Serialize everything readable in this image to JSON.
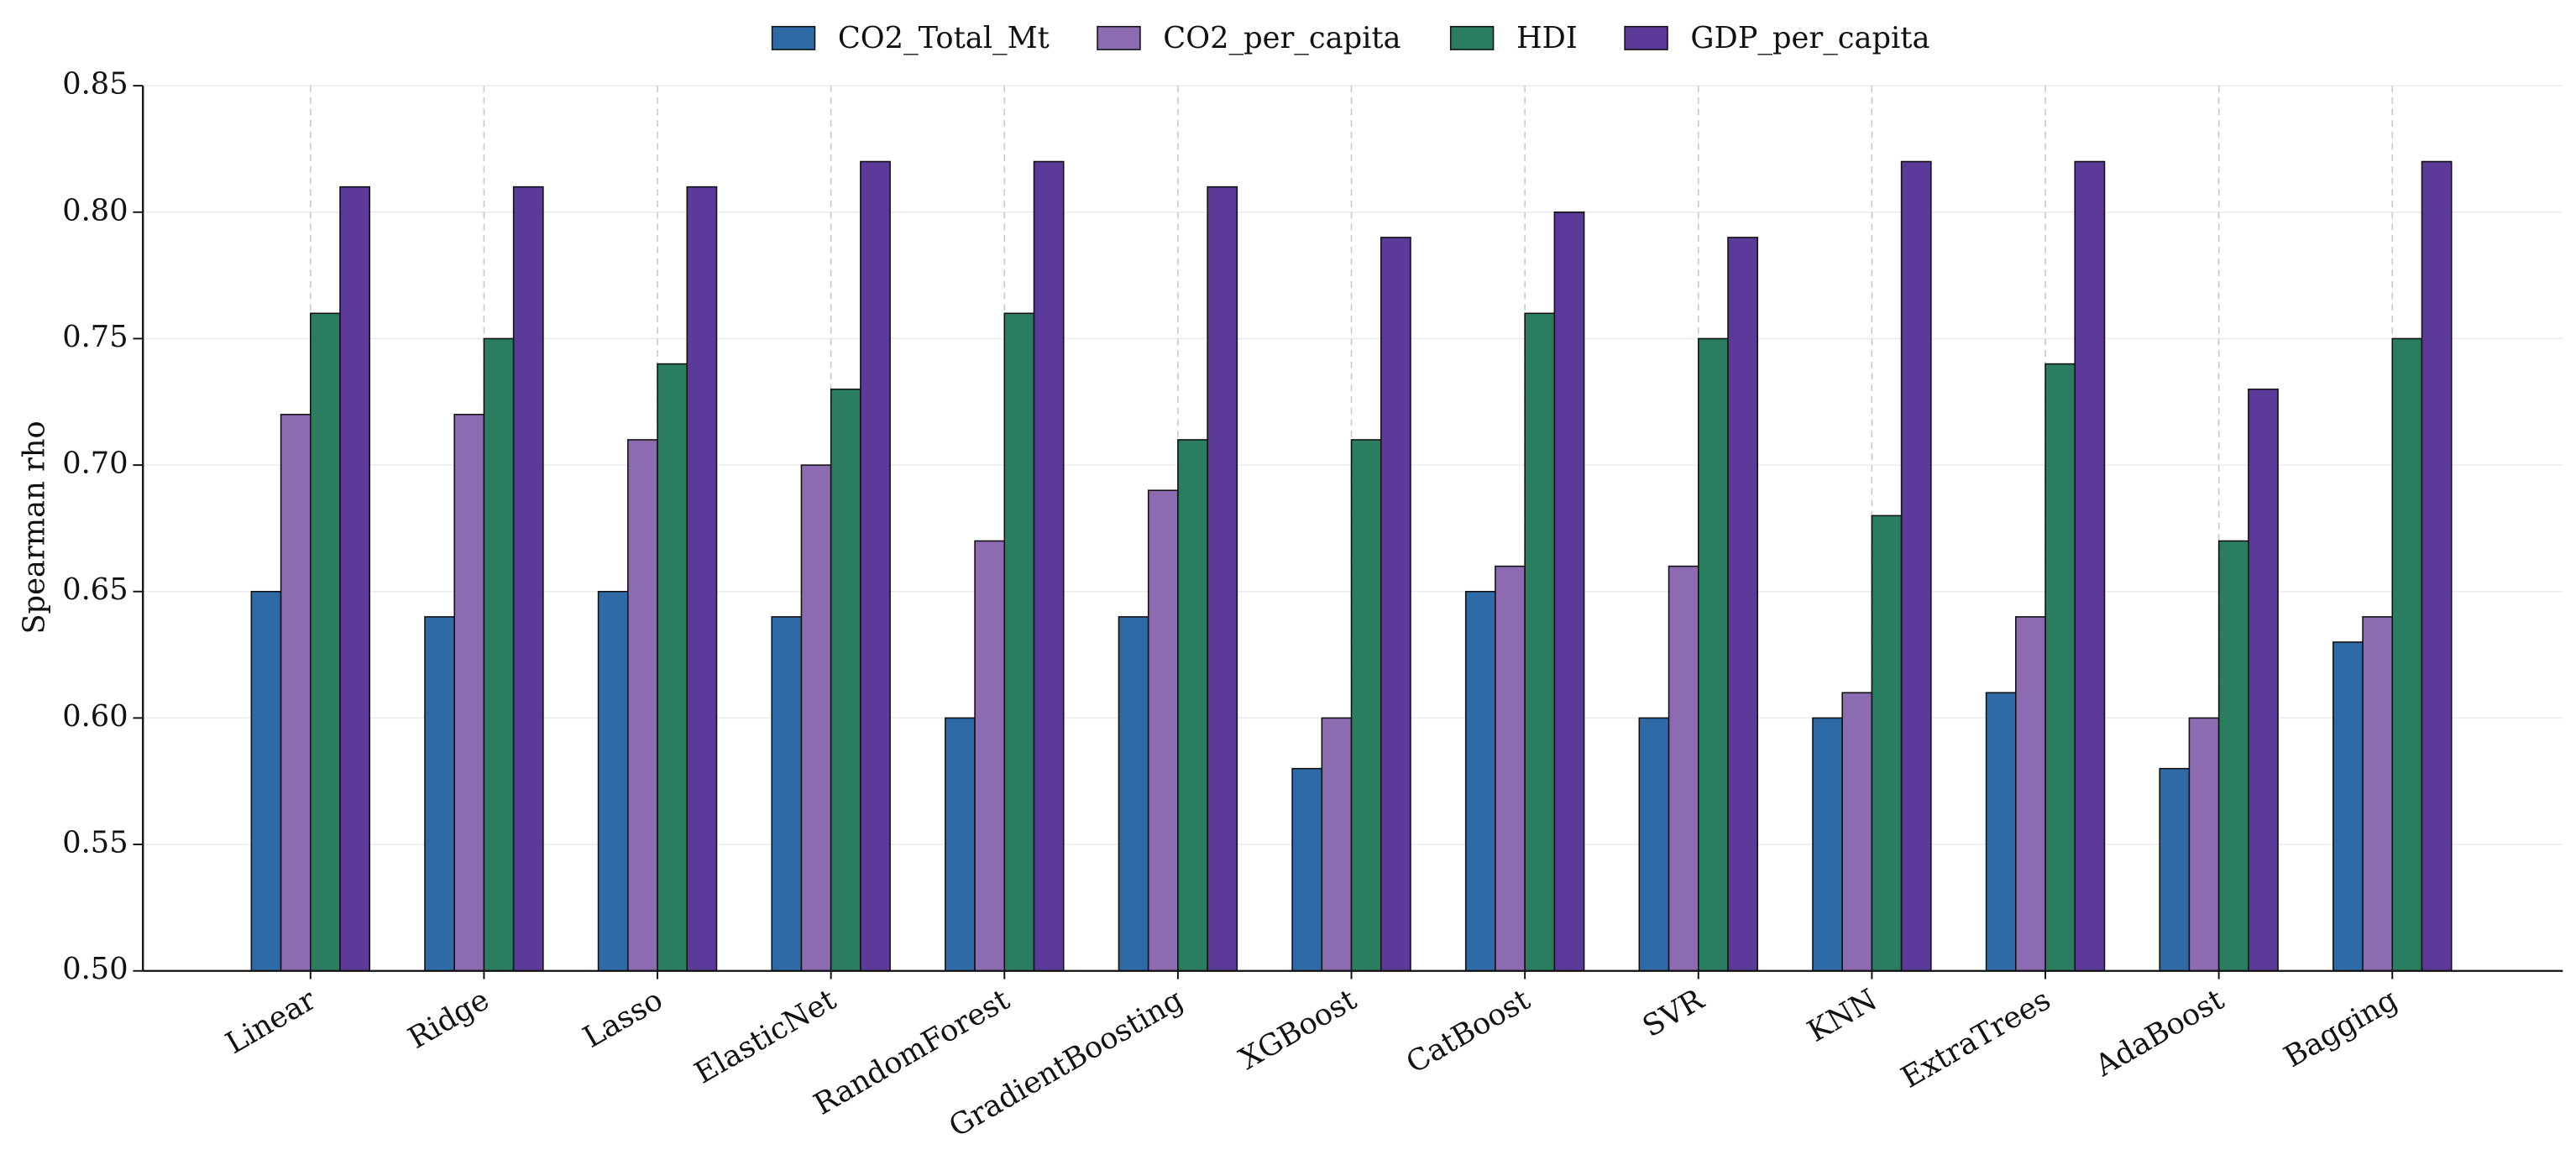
{
  "chart_data": {
    "type": "bar",
    "y_label": "Spearman rho",
    "categories": [
      "Linear",
      "Ridge",
      "Lasso",
      "ElasticNet",
      "RandomForest",
      "GradientBoosting",
      "XGBoost",
      "CatBoost",
      "SVR",
      "KNN",
      "ExtraTrees",
      "AdaBoost",
      "Bagging"
    ],
    "series": [
      {
        "name": "CO2_Total_Mt",
        "color": "#2e6aa6",
        "values": [
          0.65,
          0.64,
          0.65,
          0.64,
          0.6,
          0.64,
          0.58,
          0.65,
          0.6,
          0.6,
          0.61,
          0.58,
          0.63
        ]
      },
      {
        "name": "CO2_per_capita",
        "color": "#8c6bb1",
        "values": [
          0.72,
          0.72,
          0.71,
          0.7,
          0.67,
          0.69,
          0.6,
          0.66,
          0.66,
          0.61,
          0.64,
          0.6,
          0.64
        ]
      },
      {
        "name": "HDI",
        "color": "#2a7d5f",
        "values": [
          0.76,
          0.75,
          0.74,
          0.73,
          0.76,
          0.71,
          0.71,
          0.76,
          0.75,
          0.68,
          0.74,
          0.67,
          0.75
        ]
      },
      {
        "name": "GDP_per_capita",
        "color": "#5b3a9a",
        "values": [
          0.81,
          0.81,
          0.81,
          0.82,
          0.82,
          0.81,
          0.79,
          0.8,
          0.79,
          0.82,
          0.82,
          0.73,
          0.82
        ]
      }
    ],
    "ylim": [
      0.5,
      0.85
    ],
    "yticks": [
      {
        "value": 0.5,
        "label": "0.50"
      },
      0.55,
      {
        "value": 0.6,
        "label": "0.60"
      },
      0.65,
      {
        "value": 0.7,
        "label": "0.70"
      },
      0.75,
      {
        "value": 0.8,
        "label": "0.80"
      },
      0.85
    ],
    "grid": true,
    "legend": "top"
  }
}
